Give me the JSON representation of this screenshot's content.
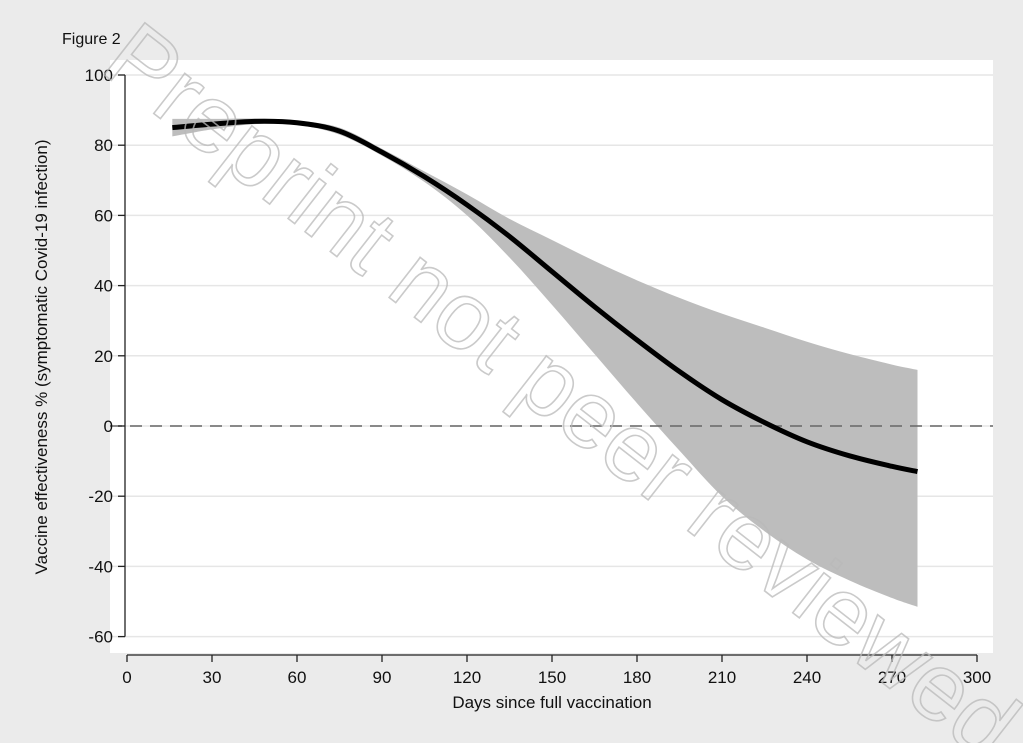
{
  "figure_label": "Figure 2",
  "watermark": "Preprint not peer reviewed",
  "colors": {
    "background": "#ebebeb",
    "plot_area": "#ffffff",
    "grid": "#e6e6e6",
    "band": "#bdbdbd",
    "line": "#000000",
    "reference_line": "#666666"
  },
  "chart_data": {
    "type": "line",
    "title": "",
    "xlabel": "Days since full vaccination",
    "ylabel": "Vaccine effectiveness % (symptomatic Covid-19 infection)",
    "xlim": [
      0,
      300
    ],
    "ylim": [
      -60,
      100
    ],
    "xticks": [
      0,
      30,
      60,
      90,
      120,
      150,
      180,
      210,
      240,
      270,
      300
    ],
    "yticks": [
      -60,
      -40,
      -20,
      0,
      20,
      40,
      60,
      80,
      100
    ],
    "grid": true,
    "reference_line_y": 0,
    "series": [
      {
        "x": [
          16,
          30,
          45,
          60,
          75,
          90,
          105,
          120,
          135,
          150,
          165,
          180,
          195,
          210,
          225,
          240,
          255,
          270,
          279
        ],
        "y": [
          85,
          86,
          86.8,
          86.4,
          84,
          78,
          71,
          63,
          54,
          44,
          34,
          24.5,
          15.5,
          7.5,
          1,
          -4.5,
          -8.5,
          -11.5,
          -13
        ],
        "lower": [
          82.5,
          84.5,
          86,
          85.8,
          83,
          77,
          69.5,
          60,
          48,
          34.5,
          20.5,
          6.5,
          -7,
          -20,
          -30,
          -38,
          -44,
          -49,
          -51.5
        ],
        "upper": [
          87.5,
          87.5,
          87.6,
          87,
          85,
          79,
          72.5,
          66,
          59,
          53,
          47,
          41.5,
          36.5,
          32,
          28,
          24,
          20.5,
          17.5,
          16
        ]
      }
    ]
  }
}
